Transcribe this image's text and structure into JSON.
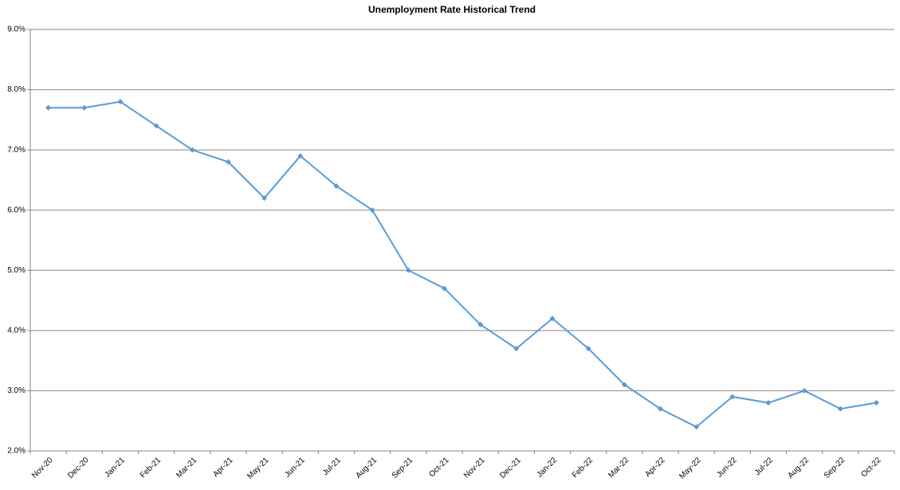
{
  "chart_data": {
    "type": "line",
    "title": "Unemployment Rate Historical Trend",
    "categories": [
      "Nov-20",
      "Dec-20",
      "Jan-21",
      "Feb-21",
      "Mar-21",
      "Apr-21",
      "May-21",
      "Jun-21",
      "Jul-21",
      "Aug-21",
      "Sep-21",
      "Oct-21",
      "Nov-21",
      "Dec-21",
      "Jan-22",
      "Feb-22",
      "Mar-22",
      "Apr-22",
      "May-22",
      "Jun-22",
      "Jul-22",
      "Aug-22",
      "Sep-22",
      "Oct-22"
    ],
    "values": [
      7.7,
      7.7,
      7.8,
      7.4,
      7.0,
      6.8,
      6.2,
      6.9,
      6.4,
      6.0,
      5.0,
      4.7,
      4.1,
      3.7,
      4.2,
      3.7,
      3.1,
      2.7,
      2.4,
      2.9,
      2.8,
      3.0,
      2.7,
      2.8
    ],
    "color": "#5b9bd5",
    "ylim": [
      2,
      9
    ],
    "yticks": [
      {
        "value": 2,
        "label": "2.0%"
      },
      {
        "value": 3,
        "label": "3.0%"
      },
      {
        "value": 4,
        "label": "4.0%"
      },
      {
        "value": 5,
        "label": "5.0%"
      },
      {
        "value": 6,
        "label": "6.0%"
      },
      {
        "value": 7,
        "label": "7.0%"
      },
      {
        "value": 8,
        "label": "8.0%"
      },
      {
        "value": 9,
        "label": "9.0%"
      }
    ],
    "grid": true
  }
}
